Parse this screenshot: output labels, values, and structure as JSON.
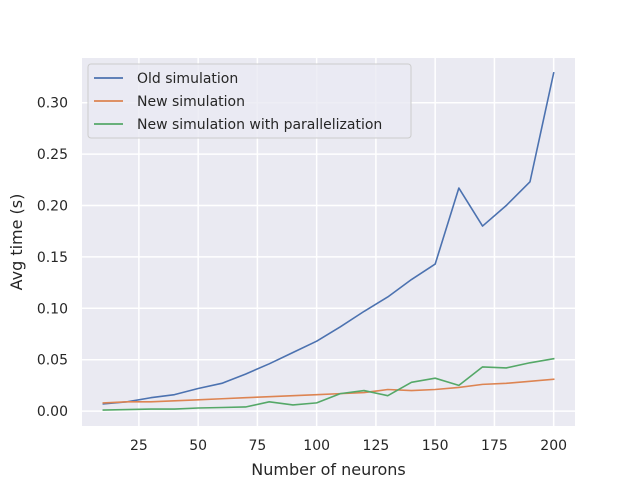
{
  "chart_data": {
    "type": "line",
    "title": "",
    "xlabel": "Number of neurons",
    "ylabel": "Avg time (s)",
    "xlim": [
      1,
      209
    ],
    "ylim": [
      -0.0145,
      0.3435
    ],
    "xticks": [
      25,
      50,
      75,
      100,
      125,
      150,
      175,
      200
    ],
    "xtick_labels": [
      "25",
      "50",
      "75",
      "100",
      "125",
      "150",
      "175",
      "200"
    ],
    "yticks": [
      0.0,
      0.05,
      0.1,
      0.15,
      0.2,
      0.25,
      0.3
    ],
    "ytick_labels": [
      "0.00",
      "0.05",
      "0.10",
      "0.15",
      "0.20",
      "0.25",
      "0.30"
    ],
    "grid": true,
    "legend_position": "upper-left",
    "x": [
      10,
      20,
      30,
      40,
      50,
      60,
      70,
      80,
      90,
      100,
      110,
      120,
      130,
      140,
      150,
      160,
      170,
      180,
      190,
      200
    ],
    "series": [
      {
        "name": "Old simulation",
        "color": "#4c72b0",
        "values": [
          0.007,
          0.009,
          0.013,
          0.016,
          0.022,
          0.027,
          0.036,
          0.046,
          0.057,
          0.068,
          0.082,
          0.097,
          0.111,
          0.128,
          0.143,
          0.217,
          0.18,
          0.2,
          0.223,
          0.329
        ]
      },
      {
        "name": "New simulation",
        "color": "#dd8452",
        "values": [
          0.008,
          0.009,
          0.009,
          0.01,
          0.011,
          0.012,
          0.013,
          0.014,
          0.015,
          0.016,
          0.017,
          0.018,
          0.021,
          0.02,
          0.021,
          0.023,
          0.026,
          0.027,
          0.029,
          0.031
        ]
      },
      {
        "name": "New simulation with parallelization",
        "color": "#55a868",
        "values": [
          0.001,
          0.0015,
          0.002,
          0.002,
          0.003,
          0.0035,
          0.004,
          0.009,
          0.006,
          0.008,
          0.017,
          0.02,
          0.015,
          0.028,
          0.032,
          0.025,
          0.043,
          0.042,
          0.047,
          0.051
        ]
      }
    ]
  }
}
